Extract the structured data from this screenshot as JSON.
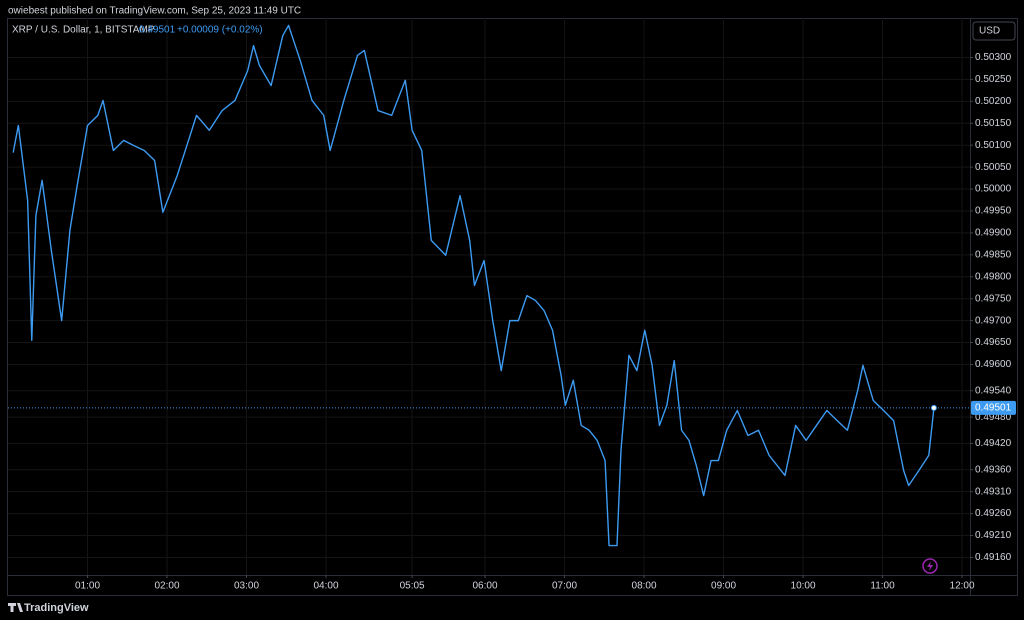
{
  "published": "owiebest published on TradingView.com, Sep 25, 2023 11:49 UTC",
  "brand": "TradingView",
  "chart_data": {
    "type": "line",
    "title": "XRP / U.S. Dollar, 1, BITSTAMP",
    "change": "+0.00009 (+0.02%)",
    "currency": "USD",
    "last_value": 0.49501,
    "color": "#3d9bf2",
    "grid": true,
    "x": [
      0.065,
      0.13,
      0.247,
      0.299,
      0.351,
      0.429,
      0.545,
      0.675,
      0.779,
      0.87,
      1.0,
      1.13,
      1.195,
      1.325,
      1.455,
      1.584,
      1.714,
      1.844,
      1.948,
      2.129,
      2.29,
      2.371,
      2.532,
      2.694,
      2.855,
      3.015,
      3.088,
      3.162,
      3.309,
      3.456,
      3.529,
      3.676,
      3.824,
      3.971,
      4.052,
      4.224,
      4.396,
      4.482,
      4.654,
      4.826,
      4.997,
      5.083,
      5.204,
      5.324,
      5.505,
      5.686,
      5.807,
      5.867,
      5.988,
      6.097,
      6.204,
      6.312,
      6.419,
      6.527,
      6.634,
      6.742,
      6.849,
      6.957,
      7.01,
      7.11,
      7.21,
      7.31,
      7.41,
      7.51,
      7.56,
      7.66,
      7.71,
      7.81,
      7.91,
      8.009,
      8.102,
      8.194,
      8.287,
      8.38,
      8.472,
      8.565,
      8.657,
      8.75,
      8.843,
      8.935,
      9.04,
      9.173,
      9.307,
      9.44,
      9.573,
      9.773,
      9.907,
      10.039,
      10.169,
      10.299,
      10.429,
      10.558,
      10.688,
      10.753,
      10.883,
      11.013,
      11.139,
      11.266,
      11.329,
      11.456,
      11.582,
      11.646
    ],
    "values": [
      0.50083,
      0.50145,
      0.49974,
      0.49655,
      0.4994,
      0.5002,
      0.4986,
      0.497,
      0.49906,
      0.50008,
      0.50145,
      0.50168,
      0.50202,
      0.50088,
      0.50111,
      0.50099,
      0.50088,
      0.50065,
      0.49947,
      0.50031,
      0.50122,
      0.50168,
      0.50134,
      0.50179,
      0.50202,
      0.5027,
      0.50327,
      0.50282,
      0.50236,
      0.5035,
      0.50373,
      0.50293,
      0.50202,
      0.50168,
      0.50088,
      0.50202,
      0.50305,
      0.50316,
      0.50179,
      0.50168,
      0.50248,
      0.50134,
      0.50088,
      0.49883,
      0.49849,
      0.49985,
      0.49883,
      0.4978,
      0.49837,
      0.497,
      0.49586,
      0.497,
      0.497,
      0.49757,
      0.49746,
      0.49723,
      0.49678,
      0.49575,
      0.49507,
      0.49564,
      0.49461,
      0.4945,
      0.49427,
      0.49381,
      0.49187,
      0.49187,
      0.49404,
      0.49621,
      0.49586,
      0.49678,
      0.49598,
      0.49461,
      0.49507,
      0.49609,
      0.4945,
      0.49427,
      0.4937,
      0.49301,
      0.49381,
      0.49381,
      0.4945,
      0.49495,
      0.49438,
      0.4945,
      0.49393,
      0.49347,
      0.49461,
      0.49427,
      0.49461,
      0.49495,
      0.49472,
      0.4945,
      0.49541,
      0.49598,
      0.49518,
      0.49495,
      0.49472,
      0.49358,
      0.49324,
      0.49358,
      0.49393,
      0.49501
    ],
    "xlim": [
      0,
      12.1
    ],
    "ylim": [
      0.4912,
      0.5039
    ],
    "xticks": [
      {
        "value": 1,
        "label": "01:00"
      },
      {
        "value": 2,
        "label": "02:00"
      },
      {
        "value": 3,
        "label": "03:00"
      },
      {
        "value": 4,
        "label": "04:00"
      },
      {
        "value": 5.083,
        "label": "05:05"
      },
      {
        "value": 6,
        "label": "06:00"
      },
      {
        "value": 7,
        "label": "07:00"
      },
      {
        "value": 8,
        "label": "08:00"
      },
      {
        "value": 9,
        "label": "09:00"
      },
      {
        "value": 10,
        "label": "10:00"
      },
      {
        "value": 11,
        "label": "11:00"
      },
      {
        "value": 12,
        "label": "12:00"
      }
    ],
    "yticks": [
      {
        "value": 0.503,
        "label": "0.50300"
      },
      {
        "value": 0.5025,
        "label": "0.50250"
      },
      {
        "value": 0.502,
        "label": "0.50200"
      },
      {
        "value": 0.5015,
        "label": "0.50150"
      },
      {
        "value": 0.501,
        "label": "0.50100"
      },
      {
        "value": 0.5005,
        "label": "0.50050"
      },
      {
        "value": 0.5,
        "label": "0.50000"
      },
      {
        "value": 0.4995,
        "label": "0.49950"
      },
      {
        "value": 0.499,
        "label": "0.49900"
      },
      {
        "value": 0.4985,
        "label": "0.49850"
      },
      {
        "value": 0.498,
        "label": "0.49800"
      },
      {
        "value": 0.4975,
        "label": "0.49750"
      },
      {
        "value": 0.497,
        "label": "0.49700"
      },
      {
        "value": 0.4965,
        "label": "0.49650"
      },
      {
        "value": 0.496,
        "label": "0.49600"
      },
      {
        "value": 0.4954,
        "label": "0.49540"
      },
      {
        "value": 0.4948,
        "label": "0.49480"
      },
      {
        "value": 0.4942,
        "label": "0.49420"
      },
      {
        "value": 0.4936,
        "label": "0.49360"
      },
      {
        "value": 0.4931,
        "label": "0.49310"
      },
      {
        "value": 0.4926,
        "label": "0.49260"
      },
      {
        "value": 0.4921,
        "label": "0.49210"
      },
      {
        "value": 0.4916,
        "label": "0.49160"
      }
    ]
  }
}
